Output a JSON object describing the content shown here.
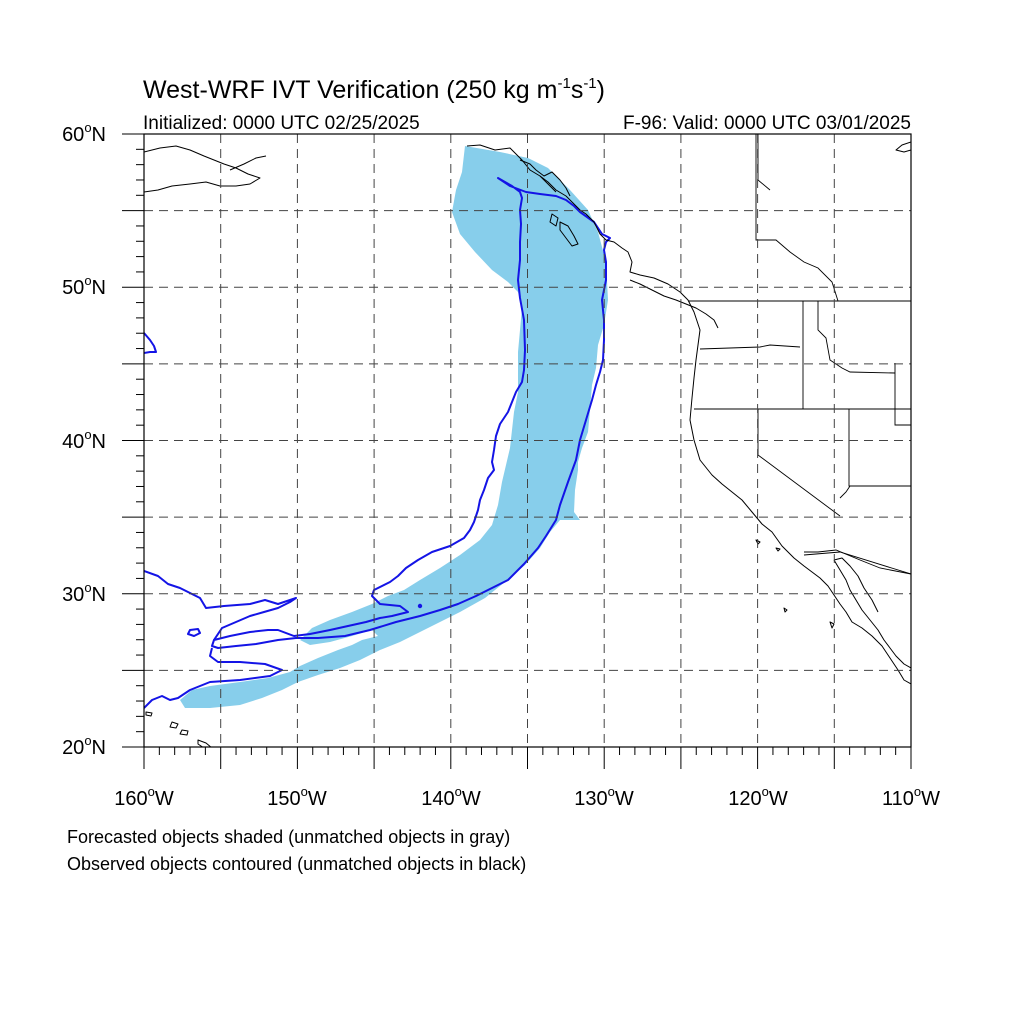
{
  "figure": {
    "title_main": "West-WRF IVT Verification (250 kg m",
    "title_sup1": "-1",
    "title_mid": "s",
    "title_sup2": "-1",
    "title_end": ")",
    "initialized": "Initialized: 0000 UTC 02/25/2025",
    "valid": "F-96: Valid: 0000 UTC 03/01/2025",
    "note_forecast": "Forecasted objects shaded (unmatched objects in gray)",
    "note_observed": "Observed objects contoured (unmatched objects in black)"
  },
  "map": {
    "projection": "cylindrical equidistant",
    "lon_range": [
      -160,
      -110
    ],
    "lat_range": [
      20,
      60
    ],
    "gridline_step_deg": 5,
    "gridlines": "dashed",
    "lat_labels": [
      {
        "deg": "20",
        "sym": "o",
        "hem": "N"
      },
      {
        "deg": "30",
        "sym": "o",
        "hem": "N"
      },
      {
        "deg": "40",
        "sym": "o",
        "hem": "N"
      },
      {
        "deg": "50",
        "sym": "o",
        "hem": "N"
      },
      {
        "deg": "60",
        "sym": "o",
        "hem": "N"
      }
    ],
    "lon_labels": [
      {
        "deg": "160",
        "sym": "o",
        "hem": "W"
      },
      {
        "deg": "150",
        "sym": "o",
        "hem": "W"
      },
      {
        "deg": "140",
        "sym": "o",
        "hem": "W"
      },
      {
        "deg": "130",
        "sym": "o",
        "hem": "W"
      },
      {
        "deg": "120",
        "sym": "o",
        "hem": "W"
      },
      {
        "deg": "110",
        "sym": "o",
        "hem": "W"
      }
    ],
    "layers": {
      "forecast_object_color": "#87ceeb",
      "observed_contour_color": "#1414e6",
      "coastline_color": "#000000"
    }
  }
}
